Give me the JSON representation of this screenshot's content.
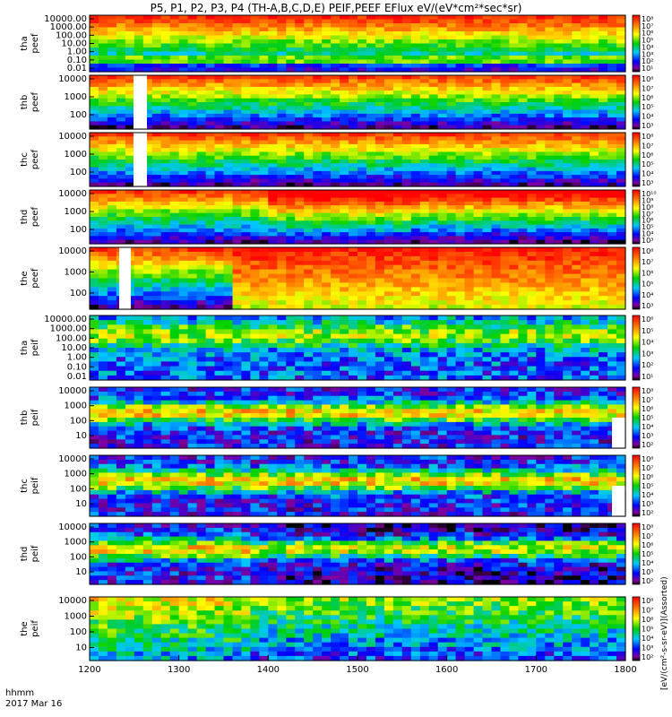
{
  "chart_data": {
    "type": "heatmap",
    "title": "P5, P1, P2, P3, P4 (TH-A,B,C,D,E) PEIF,PEEF EFlux eV/(eV*cm²*sec*sr)",
    "x_axis": {
      "label": "hhmm",
      "date_label": "2017 Mar 16",
      "ticks": [
        "1200",
        "1300",
        "1400",
        "1500",
        "1600",
        "1700",
        "1800"
      ],
      "range": [
        1200,
        1800
      ]
    },
    "colorbar_label": "[eV/(cm²-s-sr-eV)](Assorted)",
    "panels": [
      {
        "id": "tha-peef",
        "label1": "tha",
        "label2": "peef",
        "species": "electron",
        "yticks": [
          "10000.00",
          "1000.00",
          "100.00",
          "10.00",
          "1.00",
          "0.10",
          "0.01"
        ],
        "cbticks": [
          "10⁸",
          "10⁷",
          "10⁶",
          "10⁵",
          "10⁴",
          "10³",
          "10²",
          "10¹"
        ]
      },
      {
        "id": "thb-peef",
        "label1": "thb",
        "label2": "peef",
        "species": "electron",
        "yticks": [
          "10000",
          "1000",
          "100"
        ],
        "cbticks": [
          "10⁸",
          "10⁷",
          "10⁶",
          "10⁵",
          "10⁴",
          "10³"
        ]
      },
      {
        "id": "thc-peef",
        "label1": "thc",
        "label2": "peef",
        "species": "electron",
        "yticks": [
          "10000",
          "1000",
          "100"
        ],
        "cbticks": [
          "10⁸",
          "10⁷",
          "10⁶",
          "10⁵",
          "10⁴",
          "10³"
        ]
      },
      {
        "id": "thd-peef",
        "label1": "thd",
        "label2": "peef",
        "species": "electron",
        "yticks": [
          "10000",
          "1000",
          "100"
        ],
        "cbticks": [
          "10¹⁰",
          "10⁹",
          "10⁸",
          "10⁷",
          "10⁶",
          "10⁵",
          "10⁴",
          "10³"
        ]
      },
      {
        "id": "the-peef",
        "label1": "the",
        "label2": "peef",
        "species": "electron",
        "yticks": [
          "10000",
          "1000",
          "100"
        ],
        "cbticks": [
          "10⁸",
          "10⁷",
          "10⁶",
          "10⁵",
          "10⁴",
          "10³"
        ]
      },
      {
        "id": "tha-peif",
        "label1": "tha",
        "label2": "peif",
        "species": "ion",
        "yticks": [
          "10000.00",
          "1000.00",
          "100.00",
          "10.00",
          "1.00",
          "0.10",
          "0.01"
        ],
        "cbticks": [
          "10⁶",
          "10⁵",
          "10⁴",
          "10³",
          "10²",
          "10¹"
        ]
      },
      {
        "id": "thb-peif",
        "label1": "thb",
        "label2": "peif",
        "species": "ion",
        "yticks": [
          "10000",
          "1000",
          "100",
          "10"
        ],
        "cbticks": [
          "10⁸",
          "10⁷",
          "10⁶",
          "10⁵",
          "10⁴",
          "10³",
          "10²"
        ]
      },
      {
        "id": "thc-peif",
        "label1": "thc",
        "label2": "peif",
        "species": "ion",
        "yticks": [
          "10000",
          "1000",
          "100",
          "10"
        ],
        "cbticks": [
          "10⁸",
          "10⁷",
          "10⁶",
          "10⁵",
          "10⁴",
          "10³",
          "10²"
        ]
      },
      {
        "id": "thd-peif",
        "label1": "thd",
        "label2": "peif",
        "species": "ion",
        "yticks": [
          "10000",
          "1000",
          "100",
          "10"
        ],
        "cbticks": [
          "10⁸",
          "10⁷",
          "10⁶",
          "10⁵",
          "10⁴",
          "10³",
          "10²"
        ]
      },
      {
        "id": "the-peif",
        "label1": "the",
        "label2": "peif",
        "species": "ion",
        "yticks": [
          "10000",
          "1000",
          "100",
          "10"
        ],
        "cbticks": [
          "10⁸",
          "10⁷",
          "10⁶",
          "10⁵",
          "10⁴",
          "10³",
          "10²"
        ]
      }
    ]
  }
}
